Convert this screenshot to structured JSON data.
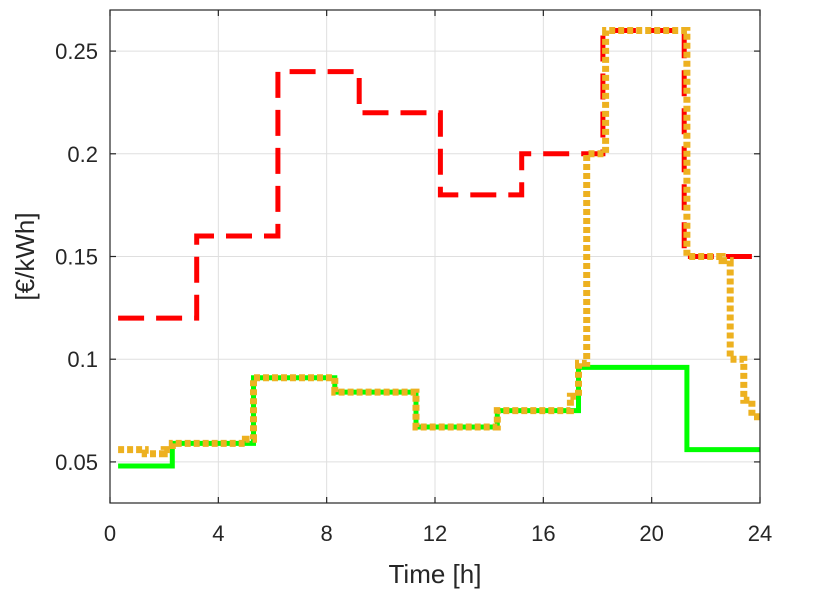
{
  "chart_data": {
    "type": "line",
    "title": "",
    "xlabel": "Time [h]",
    "ylabel": "[€/kWh]",
    "xlim": [
      0,
      24
    ],
    "ylim": [
      0.03,
      0.27
    ],
    "xticks": [
      0,
      4,
      8,
      12,
      16,
      20,
      24
    ],
    "xtick_labels": [
      "0",
      "4",
      "8",
      "12",
      "16",
      "20",
      "24"
    ],
    "yticks": [
      0.05,
      0.1,
      0.15,
      0.2,
      0.25
    ],
    "ytick_labels": [
      "0.05",
      "0.1",
      "0.15",
      "0.2",
      "0.25"
    ],
    "grid": true,
    "series": [
      {
        "color": "#ff0000",
        "style": "dashed",
        "x": [
          0.3,
          3.2,
          3.2,
          6.2,
          6.2,
          9.2,
          9.2,
          12.2,
          12.2,
          15.2,
          15.2,
          18.2,
          18.2,
          21.2,
          21.2,
          24
        ],
        "y": [
          0.12,
          0.12,
          0.16,
          0.16,
          0.24,
          0.24,
          0.22,
          0.22,
          0.18,
          0.18,
          0.2,
          0.2,
          0.26,
          0.26,
          0.15,
          0.15
        ]
      },
      {
        "color": "#00ff00",
        "style": "solid",
        "x": [
          0.3,
          2.3,
          2.3,
          5.3,
          5.3,
          8.3,
          8.3,
          11.3,
          11.3,
          14.3,
          14.3,
          17.3,
          17.3,
          21.3,
          21.3,
          24
        ],
        "y": [
          0.048,
          0.048,
          0.059,
          0.059,
          0.091,
          0.091,
          0.084,
          0.084,
          0.067,
          0.067,
          0.075,
          0.075,
          0.096,
          0.096,
          0.056,
          0.056
        ]
      },
      {
        "color": "#edb120",
        "style": "dotted",
        "x": [
          0.3,
          1.3,
          1.3,
          2.0,
          2.0,
          2.3,
          2.3,
          5.0,
          5.0,
          5.3,
          5.3,
          8.3,
          8.3,
          11.3,
          11.3,
          14.3,
          14.3,
          17.0,
          17.0,
          17.3,
          17.3,
          17.6,
          17.6,
          18.3,
          18.3,
          21.3,
          21.3,
          22.6,
          22.6,
          22.9,
          22.9,
          23.4,
          23.4,
          23.7,
          23.7,
          24
        ],
        "y": [
          0.056,
          0.056,
          0.054,
          0.054,
          0.056,
          0.056,
          0.059,
          0.059,
          0.061,
          0.061,
          0.091,
          0.091,
          0.084,
          0.084,
          0.067,
          0.067,
          0.075,
          0.075,
          0.082,
          0.082,
          0.098,
          0.098,
          0.2,
          0.2,
          0.26,
          0.26,
          0.15,
          0.15,
          0.148,
          0.148,
          0.1,
          0.1,
          0.08,
          0.08,
          0.072,
          0.072
        ]
      }
    ]
  }
}
